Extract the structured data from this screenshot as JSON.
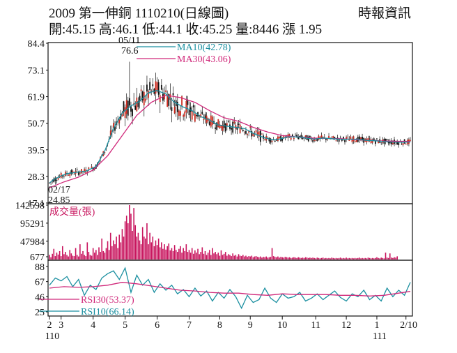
{
  "header": {
    "title": "2009 第一伸銅 1110210(日線圖)",
    "source": "時報資訊",
    "quote": "開:45.15 高:46.1 低:44.1 收:45.25 量:8446 漲 1.95"
  },
  "colors": {
    "ma10": "#1a8fa0",
    "ma30": "#d0287a",
    "volume": "#c8155e",
    "rsi30": "#d0287a",
    "rsi10": "#1a8fa0",
    "candle_up": "#cc2a1e",
    "candle_down": "#111111"
  },
  "chart_data": [
    {
      "type": "line",
      "panel": "price",
      "title": "",
      "y_ticks": [
        84.4,
        73.1,
        61.9,
        50.7,
        39.5,
        28.3,
        17.1
      ],
      "ylim": [
        17.1,
        84.4
      ],
      "x_ticks": [
        "2",
        "3",
        "4",
        "5",
        "6",
        "7",
        "8",
        "9",
        "10",
        "11",
        "12",
        "1",
        "2/10"
      ],
      "x_sublabels": [
        "110",
        "111"
      ],
      "annotations": [
        {
          "label_date": "05/11",
          "label_value": "76.6",
          "value": 76.6
        },
        {
          "label_date": "02/17",
          "label_value": "24.85",
          "value": 24.85
        }
      ],
      "series": [
        {
          "name": "MA10(42.78)",
          "x": [
            0,
            3,
            8,
            12,
            18,
            25,
            32,
            38,
            44,
            50,
            56,
            62,
            68,
            74,
            80,
            86,
            92,
            98,
            104,
            110,
            116,
            122,
            128,
            134,
            140,
            146,
            152,
            158,
            164,
            170,
            176,
            182,
            188,
            194,
            200,
            206,
            212,
            218,
            224,
            230,
            236,
            242,
            248
          ],
          "values": [
            25.5,
            27.0,
            28.5,
            29.5,
            30.0,
            30.5,
            32.5,
            39.0,
            48.5,
            55.0,
            58.0,
            60.0,
            63.5,
            64.5,
            63.0,
            59.5,
            57.5,
            56.0,
            53.5,
            52.0,
            50.0,
            49.5,
            49.0,
            48.5,
            46.5,
            45.0,
            43.8,
            44.0,
            45.0,
            45.0,
            44.5,
            44.0,
            44.5,
            44.2,
            44.0,
            44.0,
            44.0,
            43.5,
            43.3,
            43.0,
            42.8,
            42.7,
            42.78
          ]
        },
        {
          "name": "MA30(43.06)",
          "x": [
            0,
            10,
            20,
            30,
            40,
            50,
            60,
            70,
            80,
            90,
            100,
            110,
            120,
            130,
            140,
            150,
            160,
            170,
            180,
            190,
            200,
            210,
            220,
            230,
            240,
            248
          ],
          "values": [
            23.5,
            26.0,
            28.0,
            31.0,
            37.0,
            45.5,
            54.0,
            59.5,
            62.5,
            61.5,
            59.5,
            56.0,
            53.0,
            51.5,
            49.0,
            47.0,
            45.5,
            45.0,
            44.5,
            44.3,
            44.2,
            43.8,
            43.5,
            43.2,
            43.1,
            43.06
          ]
        }
      ]
    },
    {
      "type": "bar",
      "panel": "volume",
      "title": "成交量(張)",
      "y_ticks": [
        142598,
        95291,
        47984,
        677
      ],
      "ylim": [
        0,
        142598
      ],
      "values": [
        12000,
        6000,
        15000,
        28000,
        9000,
        18000,
        13000,
        22000,
        9000,
        35000,
        14000,
        20000,
        12000,
        8000,
        25000,
        16000,
        10000,
        9000,
        30000,
        12000,
        8000,
        40000,
        15000,
        22000,
        12000,
        9000,
        45000,
        20000,
        12000,
        10000,
        30000,
        18000,
        25000,
        12000,
        32000,
        20000,
        55000,
        22000,
        18000,
        30000,
        48000,
        25000,
        70000,
        35000,
        50000,
        40000,
        60000,
        30000,
        65000,
        45000,
        80000,
        60000,
        100000,
        115000,
        95000,
        142598,
        120000,
        75000,
        135000,
        90000,
        60000,
        70000,
        50000,
        40000,
        85000,
        60000,
        55000,
        95000,
        40000,
        70000,
        45000,
        60000,
        35000,
        50000,
        38000,
        55000,
        32000,
        45000,
        28000,
        40000,
        26000,
        35000,
        42000,
        24000,
        30000,
        22000,
        38000,
        25000,
        20000,
        28000,
        35000,
        18000,
        30000,
        22000,
        40000,
        20000,
        25000,
        18000,
        30000,
        15000,
        24000,
        18000,
        28000,
        14000,
        20000,
        32000,
        15000,
        22000,
        12000,
        18000,
        25000,
        12000,
        30000,
        16000,
        20000,
        14000,
        18000,
        10000,
        24000,
        12000,
        15000,
        20000,
        10000,
        14000,
        12000,
        9000,
        16000,
        10000,
        12000,
        8000,
        14000,
        10000,
        9000,
        12000,
        8000,
        10000,
        7000,
        9000,
        8000,
        10000,
        6000,
        8000,
        9000,
        7000,
        6000,
        8000,
        5000,
        7000,
        6000,
        8000,
        5000,
        6000,
        7000,
        30000,
        9000,
        7000,
        6000,
        8000,
        5000,
        7000,
        6000,
        5000,
        7000,
        6000,
        5000,
        6000,
        4000,
        5000,
        6000,
        5000,
        4000,
        6000,
        5000,
        4000,
        5000,
        4000,
        6000,
        5000,
        4000,
        5000,
        4000,
        5000,
        4000,
        3000,
        5000,
        4000,
        3000,
        4000,
        5000,
        3000,
        4000,
        3000,
        4000,
        3000,
        5000,
        4000,
        3000,
        4000,
        3000,
        4000,
        5000,
        3000,
        4000,
        3000,
        5000,
        3000,
        4000,
        3000,
        4000,
        3000,
        4000,
        3000,
        4000,
        5000,
        3000,
        4000,
        3000,
        4000,
        3000,
        5000,
        4000,
        3000,
        4000,
        3000,
        4000,
        6000,
        4000,
        3000,
        5000,
        4000,
        3000,
        18000,
        5000,
        4000,
        16000,
        5000,
        4000,
        6000,
        5000,
        8446
      ]
    },
    {
      "type": "line",
      "panel": "rsi",
      "title": "",
      "y_ticks": [
        88,
        67,
        46,
        25
      ],
      "ylim": [
        25,
        88
      ],
      "series": [
        {
          "name": "RSI30(53.37)",
          "x": [
            0,
            10,
            20,
            30,
            40,
            50,
            60,
            70,
            80,
            90,
            100,
            110,
            120,
            130,
            140,
            150,
            160,
            170,
            180,
            190,
            200,
            210,
            220,
            230,
            240,
            248
          ],
          "values": [
            58,
            60,
            59,
            60,
            62,
            66,
            64,
            61,
            58,
            55,
            54,
            52,
            51,
            51,
            49,
            48,
            50,
            49,
            49,
            49,
            48,
            48,
            47,
            48,
            51,
            53.37
          ]
        },
        {
          "name": "RSI10(66.14)",
          "x": [
            0,
            4,
            8,
            12,
            16,
            20,
            24,
            28,
            32,
            36,
            40,
            44,
            48,
            52,
            56,
            60,
            64,
            68,
            72,
            76,
            80,
            84,
            88,
            92,
            96,
            100,
            104,
            108,
            112,
            116,
            120,
            124,
            128,
            132,
            136,
            140,
            144,
            148,
            152,
            156,
            160,
            164,
            168,
            172,
            176,
            180,
            184,
            188,
            192,
            196,
            200,
            204,
            208,
            212,
            216,
            220,
            224,
            228,
            232,
            236,
            240,
            244,
            248
          ],
          "values": [
            62,
            72,
            68,
            74,
            60,
            70,
            48,
            62,
            56,
            72,
            78,
            82,
            70,
            86,
            52,
            76,
            62,
            70,
            52,
            64,
            55,
            62,
            50,
            56,
            46,
            58,
            47,
            54,
            40,
            52,
            44,
            56,
            46,
            30,
            48,
            38,
            42,
            58,
            44,
            38,
            50,
            44,
            46,
            52,
            40,
            44,
            50,
            42,
            48,
            54,
            45,
            40,
            50,
            46,
            55,
            42,
            48,
            40,
            58,
            46,
            55,
            48,
            66.14
          ]
        }
      ]
    }
  ]
}
